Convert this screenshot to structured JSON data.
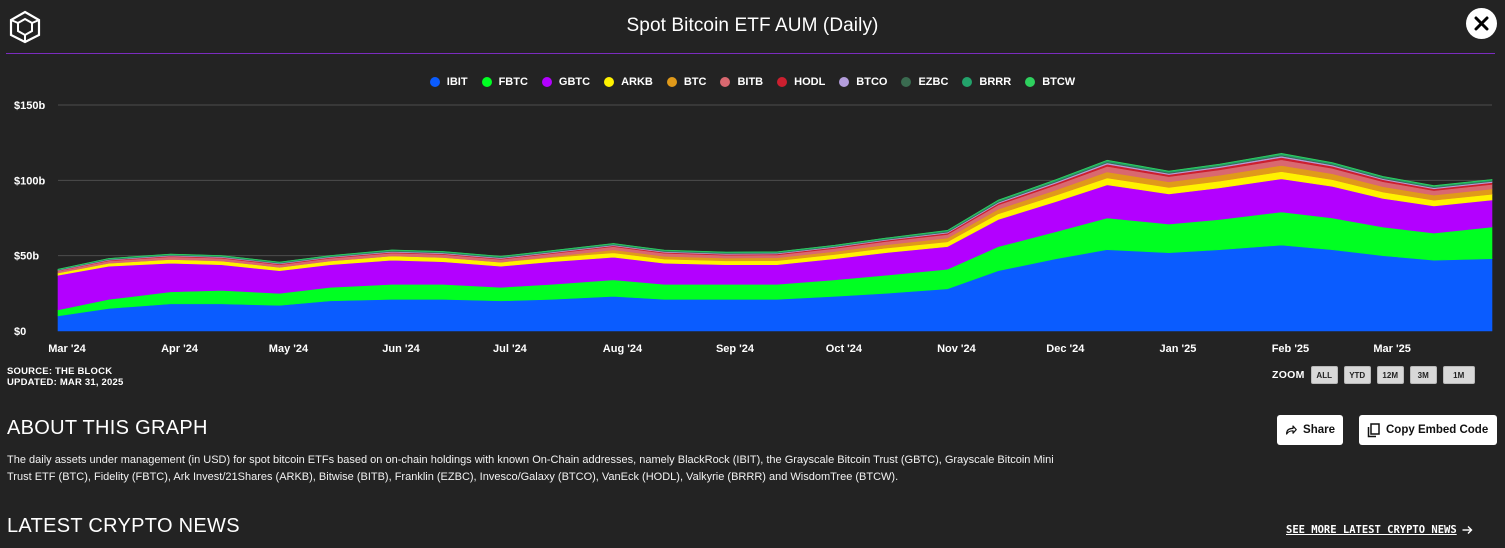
{
  "header": {
    "title": "Spot Bitcoin ETF AUM (Daily)"
  },
  "footer": {
    "source": "SOURCE: THE BLOCK",
    "updated": "UPDATED: MAR 31, 2025"
  },
  "zoom": {
    "label": "ZOOM",
    "buttons": [
      "ALL",
      "YTD",
      "12M",
      "3M",
      "1M"
    ]
  },
  "about": {
    "title": "ABOUT THIS GRAPH",
    "text": "The daily assets under management (in USD) for spot bitcoin ETFs based on on-chain holdings with known On-Chain addresses, namely BlackRock (IBIT), the Grayscale Bitcoin Trust (GBTC), Grayscale Bitcoin Mini Trust ETF (BTC), Fidelity (FBTC), Ark Invest/21Shares (ARKB), Bitwise (BITB), Franklin (EZBC), Invesco/Galaxy (BTCO), VanEck (HODL), Valkyrie (BRRR) and WisdomTree (BTCW).",
    "share_label": "Share",
    "embed_label": "Copy Embed Code"
  },
  "news": {
    "title": "LATEST CRYPTO NEWS",
    "see_more": "SEE MORE LATEST CRYPTO NEWS"
  },
  "chart_data": {
    "type": "area",
    "stacked": true,
    "title": "Spot Bitcoin ETF AUM (Daily)",
    "y_unit": "USD billions",
    "ylim": [
      0,
      150
    ],
    "y_ticks": [
      0,
      50,
      100,
      150
    ],
    "y_tick_labels": [
      "$0",
      "$50b",
      "$100b",
      "$150b"
    ],
    "x_tick_labels": [
      "Mar '24",
      "Apr '24",
      "May '24",
      "Jun '24",
      "Jul '24",
      "Aug '24",
      "Sep '24",
      "Oct '24",
      "Nov '24",
      "Dec '24",
      "Jan '25",
      "Feb '25",
      "Mar '25"
    ],
    "grid": true,
    "legend_position": "top-center",
    "x": [
      "2024-03-01",
      "2024-03-15",
      "2024-04-01",
      "2024-04-15",
      "2024-05-01",
      "2024-05-15",
      "2024-06-01",
      "2024-06-15",
      "2024-07-01",
      "2024-07-15",
      "2024-08-01",
      "2024-08-15",
      "2024-09-01",
      "2024-09-15",
      "2024-10-01",
      "2024-10-15",
      "2024-11-01",
      "2024-11-15",
      "2024-12-01",
      "2024-12-15",
      "2025-01-01",
      "2025-01-15",
      "2025-02-01",
      "2025-02-15",
      "2025-03-01",
      "2025-03-15",
      "2025-03-31"
    ],
    "series": [
      {
        "name": "IBIT",
        "color": "#0a5cff",
        "values": [
          10,
          15,
          18,
          18,
          17,
          20,
          21,
          21,
          20,
          21,
          23,
          21,
          21,
          21,
          23,
          25,
          28,
          40,
          48,
          54,
          52,
          54,
          57,
          54,
          50,
          47,
          48
        ]
      },
      {
        "name": "FBTC",
        "color": "#00ff22",
        "values": [
          4,
          6,
          8,
          9,
          8,
          9,
          10,
          10,
          9,
          10,
          11,
          10,
          10,
          10,
          11,
          12,
          13,
          16,
          18,
          21,
          19,
          20,
          22,
          21,
          19,
          18,
          21
        ]
      },
      {
        "name": "GBTC",
        "color": "#b300ff",
        "values": [
          23,
          22,
          19,
          17,
          15,
          15,
          16,
          15,
          14,
          15,
          15,
          14,
          13,
          13,
          14,
          15,
          15,
          18,
          20,
          22,
          20,
          21,
          22,
          21,
          19,
          18,
          18
        ]
      },
      {
        "name": "ARKB",
        "color": "#fff200",
        "values": [
          1.5,
          2,
          2.5,
          2.5,
          2.3,
          2.5,
          2.8,
          2.8,
          2.7,
          2.8,
          2.9,
          2.7,
          2.6,
          2.7,
          2.8,
          3,
          3.2,
          3.8,
          4.2,
          4.6,
          4.3,
          4.5,
          4.8,
          4.5,
          4.2,
          3.8,
          3.8
        ]
      },
      {
        "name": "BTC",
        "color": "#e09a1a",
        "values": [
          0,
          0,
          0,
          0,
          0,
          0,
          0,
          0,
          0,
          0.6,
          2,
          1.9,
          1.8,
          1.9,
          2,
          2.2,
          2.5,
          3,
          3.5,
          4,
          3.7,
          3.9,
          4.1,
          3.9,
          3.6,
          3.4,
          3.5
        ]
      },
      {
        "name": "BITB",
        "color": "#d96870",
        "values": [
          1.3,
          1.6,
          1.8,
          1.8,
          1.7,
          1.8,
          2,
          2,
          1.9,
          2,
          2.1,
          2,
          1.9,
          1.9,
          2,
          2.2,
          2.4,
          2.9,
          3.3,
          3.7,
          3.5,
          3.6,
          3.8,
          3.6,
          3.3,
          3,
          3
        ]
      },
      {
        "name": "HODL",
        "color": "#cc1f2f",
        "values": [
          0.3,
          0.4,
          0.5,
          0.5,
          0.5,
          0.5,
          0.5,
          0.5,
          0.5,
          0.5,
          0.6,
          0.6,
          0.6,
          0.6,
          0.7,
          0.8,
          0.9,
          1,
          1.2,
          1.4,
          1.3,
          1.4,
          1.5,
          1.4,
          1.3,
          1.2,
          1.2
        ]
      },
      {
        "name": "BTCO",
        "color": "#b39ddb",
        "values": [
          0.3,
          0.4,
          0.4,
          0.4,
          0.4,
          0.4,
          0.5,
          0.5,
          0.5,
          0.5,
          0.5,
          0.5,
          0.5,
          0.5,
          0.5,
          0.5,
          0.6,
          0.7,
          0.8,
          0.9,
          0.8,
          0.8,
          0.9,
          0.8,
          0.7,
          0.7,
          0.7
        ]
      },
      {
        "name": "EZBC",
        "color": "#3a6b50",
        "values": [
          0.2,
          0.3,
          0.3,
          0.3,
          0.3,
          0.3,
          0.4,
          0.4,
          0.4,
          0.4,
          0.4,
          0.4,
          0.4,
          0.4,
          0.4,
          0.4,
          0.5,
          0.6,
          0.6,
          0.7,
          0.6,
          0.6,
          0.7,
          0.6,
          0.6,
          0.5,
          0.5
        ]
      },
      {
        "name": "BRRR",
        "color": "#23a36b",
        "values": [
          0.3,
          0.4,
          0.5,
          0.5,
          0.5,
          0.5,
          0.5,
          0.5,
          0.5,
          0.5,
          0.5,
          0.5,
          0.5,
          0.5,
          0.5,
          0.5,
          0.6,
          0.7,
          0.8,
          0.9,
          0.8,
          0.8,
          0.9,
          0.8,
          0.7,
          0.7,
          0.7
        ]
      },
      {
        "name": "BTCW",
        "color": "#2ed05e",
        "values": [
          0.1,
          0.1,
          0.1,
          0.1,
          0.1,
          0.1,
          0.1,
          0.1,
          0.1,
          0.1,
          0.1,
          0.1,
          0.1,
          0.1,
          0.1,
          0.1,
          0.1,
          0.2,
          0.2,
          0.2,
          0.2,
          0.2,
          0.2,
          0.2,
          0.2,
          0.2,
          0.2
        ]
      }
    ]
  }
}
